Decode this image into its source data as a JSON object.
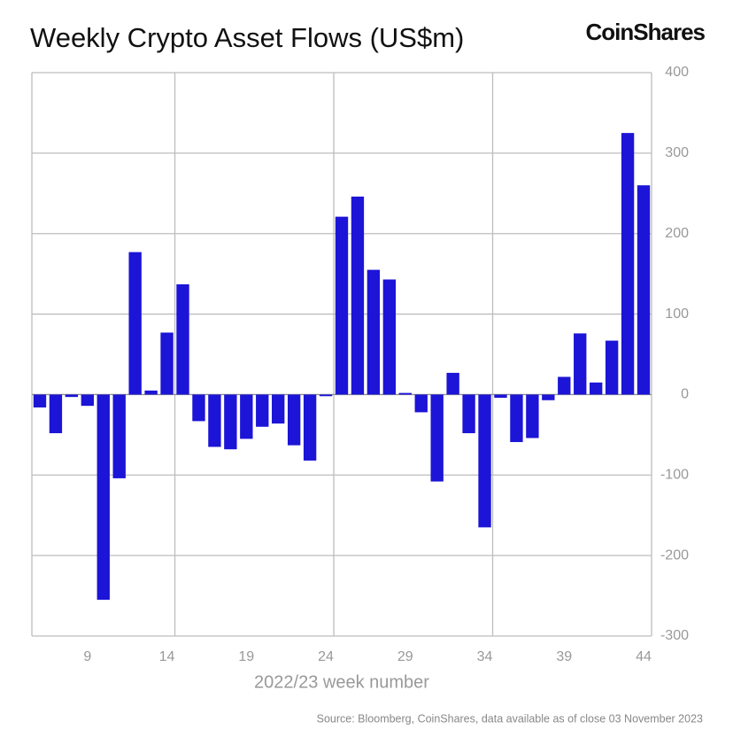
{
  "chart_data": {
    "type": "bar",
    "title": "Weekly Crypto Asset Flows (US$m)",
    "logo": "CoinShares",
    "x_label": "2022/23 week number",
    "source": "Source: Bloomberg, CoinShares, data available as of close 03 November 2023",
    "x": [
      6,
      7,
      8,
      9,
      10,
      11,
      12,
      13,
      14,
      15,
      16,
      17,
      18,
      19,
      20,
      21,
      22,
      23,
      24,
      25,
      26,
      27,
      28,
      29,
      30,
      31,
      32,
      33,
      34,
      35,
      36,
      37,
      38,
      39,
      40,
      41,
      42,
      43,
      44
    ],
    "values": [
      -16,
      -48,
      -3,
      -14,
      -255,
      -104,
      177,
      5,
      77,
      137,
      -33,
      -65,
      -68,
      -55,
      -40,
      -36,
      -63,
      -82,
      -2,
      221,
      246,
      155,
      143,
      2,
      -22,
      -108,
      27,
      -48,
      -165,
      -4,
      -59,
      -54,
      -7,
      22,
      76,
      15,
      67,
      325,
      260
    ],
    "color": "#1c14d6",
    "xlim": [
      5.5,
      44.5
    ],
    "xticks": [
      9,
      14,
      19,
      24,
      29,
      34,
      39,
      44
    ],
    "xgrid": [
      14.5,
      24.5,
      34.5
    ],
    "ylim": [
      -300,
      400
    ],
    "yticks": [
      -300,
      -200,
      -100,
      0,
      100,
      200,
      300,
      400
    ],
    "grid": true,
    "y_axis_side": "right"
  }
}
